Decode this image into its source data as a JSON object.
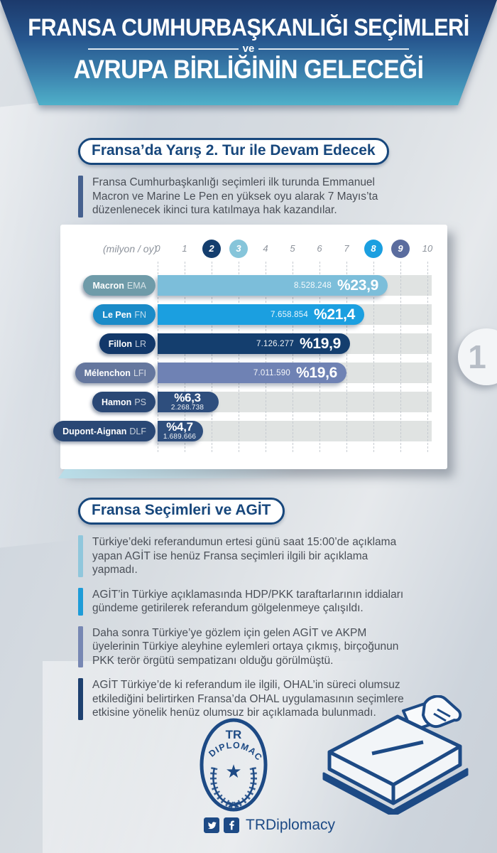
{
  "header": {
    "title_line1": "FRANSA CUMHURBAŞKANLIĞI SEÇİMLERİ",
    "divider": "ve",
    "title_line2": "AVRUPA BİRLİĞİNİN GELECEĞİ"
  },
  "page_number": "1",
  "sections": [
    {
      "title": "Fransa’da Yarış 2. Tur ile Devam Edecek",
      "paragraphs": [
        {
          "text": "Fransa Cumhurbaşkanlığı seçimleri ilk turunda Emmanuel Macron ve Marine Le Pen en yüksek oyu alarak 7 Mayıs’ta düzenlenecek ikinci tura katılmaya hak kazandılar.",
          "accent": "#46618f"
        }
      ]
    },
    {
      "title": "Fransa Seçimleri ve AGİT",
      "paragraphs": [
        {
          "text": "Türkiye’deki referandumun ertesi günü saat 15:00’de açıklama yapan AGİT ise henüz Fransa seçimleri ilgili bir açıklama yapmadı.",
          "accent": "#90c7dc"
        },
        {
          "text": "AGİT’in Türkiye açıklamasında HDP/PKK taraftarlarının iddiaları gündeme getirilerek referandum gölgelenmeye çalışıldı.",
          "accent": "#1e9cd8"
        },
        {
          "text": "Daha sonra Türkiye’ye gözlem için gelen AGİT ve AKPM üyelerinin Türkiye aleyhine eylemleri ortaya çıkmış, birçoğunun PKK terör örgütü sempatizanı olduğu görülmüştü.",
          "accent": "#7787b3"
        },
        {
          "text": "AGİT Türkiye’de ki referandum ile ilgili, OHAL’in süreci olumsuz etkilediğini belirtirken Fransa’da OHAL uygulamasının seçimlere etkisine yönelik henüz olumsuz bir açıklamada bulunmadı.",
          "accent": "#1d406f"
        }
      ]
    }
  ],
  "chart_data": {
    "type": "bar",
    "orientation": "horizontal",
    "axis_label": "(milyon / oy)",
    "x_ticks": [
      "0",
      "1",
      "2",
      "3",
      "4",
      "5",
      "6",
      "7",
      "8",
      "9",
      "10"
    ],
    "xlim": [
      0,
      10
    ],
    "grid": "dashed-vertical",
    "highlighted_ticks": [
      {
        "value": 2,
        "color": "#143e6e"
      },
      {
        "value": 3,
        "color": "#86c5da"
      },
      {
        "value": 8,
        "color": "#1b9fe0"
      },
      {
        "value": 9,
        "color": "#5a6c9e"
      }
    ],
    "rows": [
      {
        "candidate": "Macron",
        "party": "EMA",
        "votes_label": "8.528.248",
        "percent_label": "%23,9",
        "value_millions": 8.528248,
        "bar_color": "#7cbeda",
        "pill_color": "#6f9ba9",
        "layout": "inline"
      },
      {
        "candidate": "Le Pen",
        "party": "FN",
        "votes_label": "7.658.854",
        "percent_label": "%21,4",
        "value_millions": 7.658854,
        "bar_color": "#1b9fe0",
        "pill_color": "#1a8bc8",
        "layout": "inline"
      },
      {
        "candidate": "Fillon",
        "party": "LR",
        "votes_label": "7.126.277",
        "percent_label": "%19,9",
        "value_millions": 7.126277,
        "bar_color": "#143e6e",
        "pill_color": "#12386a",
        "layout": "inline"
      },
      {
        "candidate": "Mélenchon",
        "party": "LFI",
        "votes_label": "7.011.590",
        "percent_label": "%19,6",
        "value_millions": 7.01159,
        "bar_color": "#6f82b4",
        "pill_color": "#65779e",
        "layout": "inline"
      },
      {
        "candidate": "Hamon",
        "party": "PS",
        "votes_label": "2.268.738",
        "percent_label": "%6,3",
        "value_millions": 2.268738,
        "bar_color": "#2e4e7d",
        "pill_color": "#2a4875",
        "layout": "stacked"
      },
      {
        "candidate": "Dupont-Aignan",
        "party": "DLF",
        "votes_label": "1.689.666",
        "percent_label": "%4,7",
        "value_millions": 1.689666,
        "bar_color": "#2e4e7d",
        "pill_color": "#2a4875",
        "layout": "stacked"
      }
    ],
    "track_color": "#e0e3e2"
  },
  "footer": {
    "logo_line1": "TR",
    "logo_line2": "DIPLOMACY",
    "handle": "TRDiplomacy",
    "brand_color": "#1d4a85"
  }
}
